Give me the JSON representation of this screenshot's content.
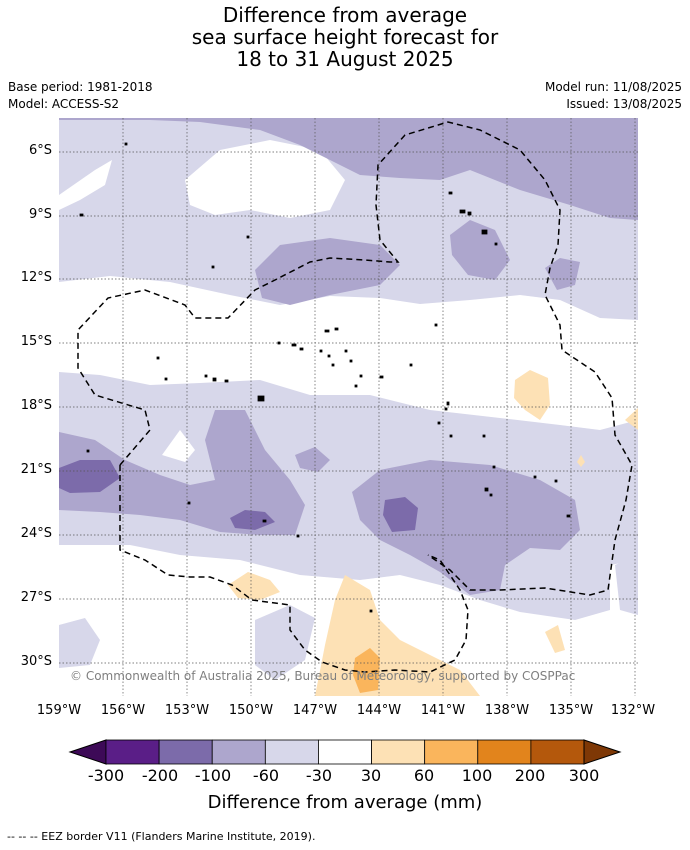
{
  "title": [
    "Difference from average",
    "sea surface height forecast for",
    "18 to 31 August 2025"
  ],
  "base_period": "Base period: 1981-2018",
  "model": "Model: ACCESS-S2",
  "model_run": "Model run: 11/08/2025",
  "issued": "Issued: 13/08/2025",
  "lat_labels": [
    "6°S",
    "9°S",
    "12°S",
    "15°S",
    "18°S",
    "21°S",
    "24°S",
    "27°S",
    "30°S"
  ],
  "lon_labels": [
    "159°W",
    "156°W",
    "153°W",
    "150°W",
    "147°W",
    "144°W",
    "141°W",
    "138°W",
    "135°W",
    "132°W"
  ],
  "credit": "© Commonwealth of Australia 2025, Bureau of Meteorology, supported by COSPPac",
  "colorbar": {
    "ticks": [
      "-300",
      "-200",
      "-100",
      "-60",
      "-30",
      "30",
      "60",
      "100",
      "200",
      "300"
    ],
    "colors": [
      "#5a1e87",
      "#7c6baa",
      "#ada6cd",
      "#d7d7ea",
      "#ffffff",
      "#fde1b5",
      "#fab55c",
      "#e2841c",
      "#b4580c"
    ],
    "under_color": "#3d0a57",
    "over_color": "#7e3806",
    "label": "Difference from average (mm)"
  },
  "footnote": "--  --  -- EEZ border V11 (Flanders Marine Institute, 2019).",
  "legend_items": [
    "EEZ border"
  ]
}
